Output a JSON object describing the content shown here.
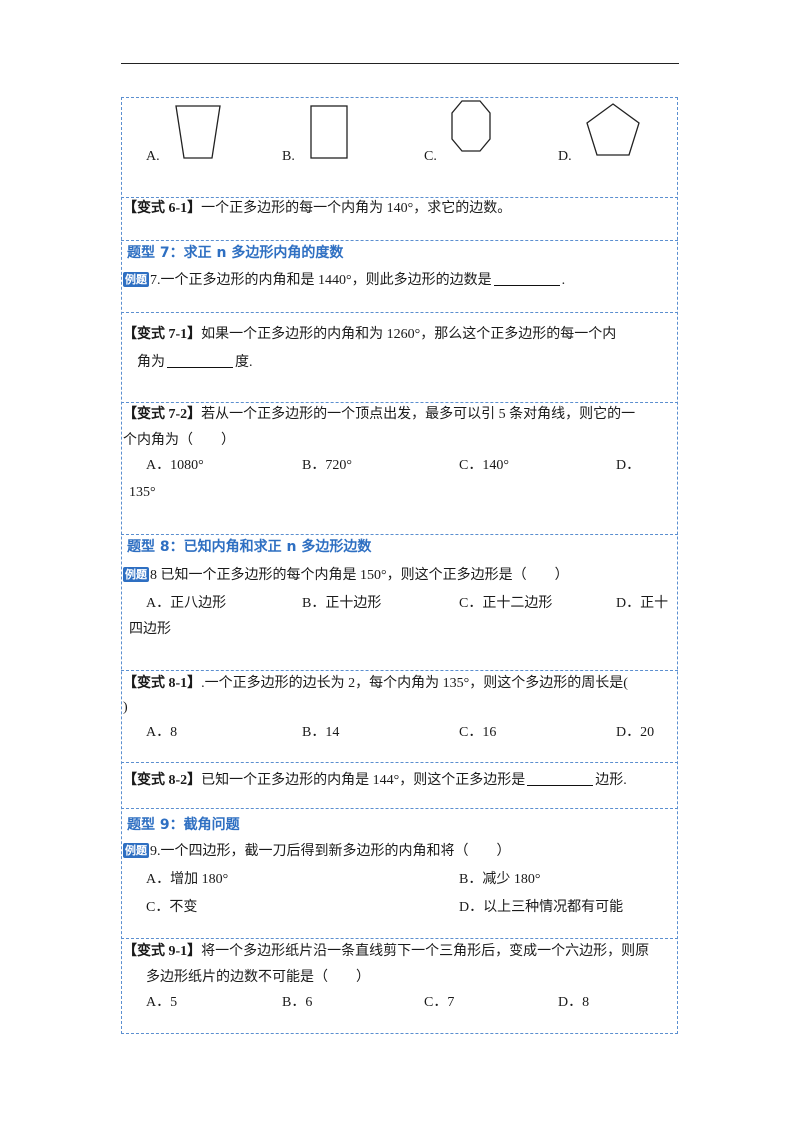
{
  "q6": {
    "options": [
      "A.",
      "B.",
      "C.",
      "D."
    ]
  },
  "v6_1": {
    "tag": "【变式 6-1】",
    "text": "一个正多边形的每一个内角为 140°，求它的边数。"
  },
  "sec7": {
    "title": "题型 7：求正 n 多边形内角的度数"
  },
  "ex7": {
    "badge": "例题",
    "text_a": "7.一个正多边形的内角和是 1440°，则此多边形的边数是",
    "text_b": "."
  },
  "v7_1": {
    "tag": "【变式 7-1】",
    "line1": "如果一个正多边形的内角和为 1260°，那么这个正多边形的每一个内",
    "line2_a": "角为",
    "line2_b": "度."
  },
  "v7_2": {
    "tag": "【变式 7-2】",
    "line1": "若从一个正多边形的一个顶点出发，最多可以引 5 条对角线，则它的一",
    "line2": "个内角为（　　）",
    "options": [
      "A．1080°",
      "B．720°",
      "C．140°",
      "D．"
    ],
    "wrap": "135°"
  },
  "sec8": {
    "title": "题型 8：已知内角和求正 n 多边形边数"
  },
  "ex8": {
    "badge": "例题",
    "text": "8 已知一个正多边形的每个内角是 150°，则这个正多边形是（　　）",
    "options": [
      "A．正八边形",
      "B．正十边形",
      "C．正十二边形",
      "D．正十"
    ],
    "wrap": "四边形"
  },
  "v8_1": {
    "tag": "【变式 8-1】",
    "line1": ".一个正多边形的边长为 2，每个内角为 135°，则这个多边形的周长是(",
    "line2": ")",
    "options": [
      "A．8",
      "B．14",
      "C．16",
      "D．20"
    ]
  },
  "v8_2": {
    "tag": "【变式 8-2】",
    "text_a": "已知一个正多边形的内角是 144°，则这个正多边形是",
    "text_b": "边形."
  },
  "sec9": {
    "title": "题型 9：截角问题"
  },
  "ex9": {
    "badge": "例题",
    "text": "9.一个四边形，截一刀后得到新多边形的内角和将（　　）",
    "options": [
      "A．增加 180°",
      "B．减少 180°",
      "C．不变",
      "D．以上三种情况都有可能"
    ]
  },
  "v9_1": {
    "tag": "【变式 9-1】",
    "line1": "将一个多边形纸片沿一条直线剪下一个三角形后，变成一个六边形，则原",
    "line2": "多边形纸片的边数不可能是（　　）",
    "options": [
      "A．5",
      "B．6",
      "C．7",
      "D．8"
    ]
  }
}
